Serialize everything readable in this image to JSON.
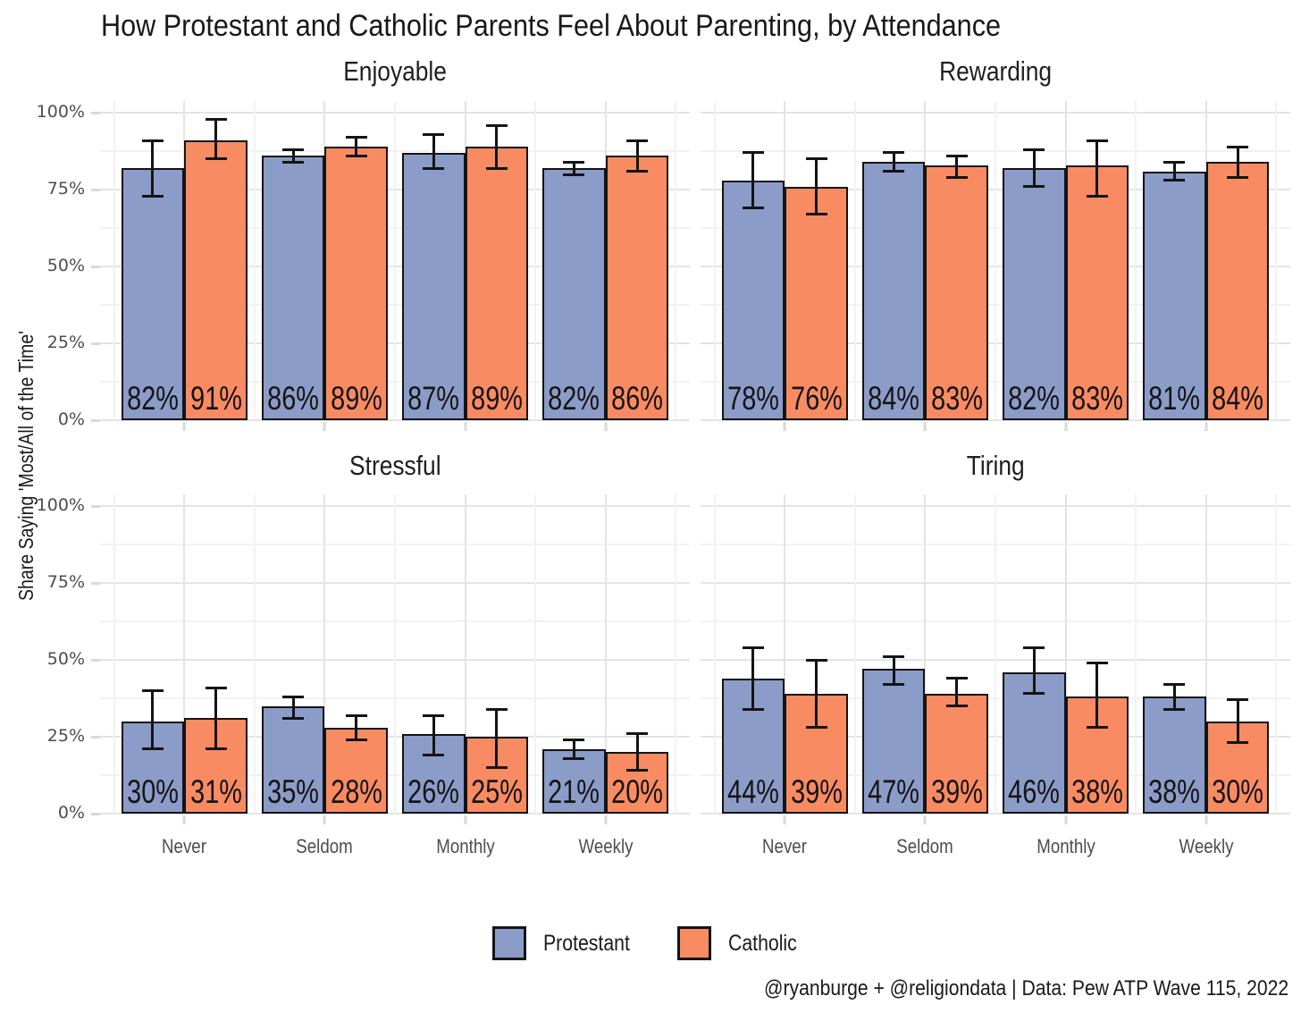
{
  "title": "How Protestant and Catholic Parents Feel About Parenting, by Attendance",
  "y_axis": {
    "label": "Share Saying 'Most/All of the Time'",
    "ticks": [
      "0%",
      "25%",
      "50%",
      "75%",
      "100%"
    ]
  },
  "legend": {
    "items": [
      {
        "label": "Protestant",
        "color": "#8C9CC8"
      },
      {
        "label": "Catholic",
        "color": "#F98B62"
      }
    ]
  },
  "caption": "@ryanburge + @religiondata | Data: Pew ATP Wave 115, 2022",
  "chart_data": {
    "type": "bar",
    "y_unit": "%",
    "ylim": [
      0,
      100
    ],
    "yticks": [
      0,
      25,
      50,
      75,
      100
    ],
    "grid": "on",
    "legend_position": "bottom",
    "error_bars": true,
    "categories": [
      "Never",
      "Seldom",
      "Monthly",
      "Weekly"
    ],
    "facets": [
      {
        "title": "Enjoyable",
        "series": [
          {
            "name": "Protestant",
            "values": [
              82,
              86,
              87,
              82
            ],
            "ci_low": [
              73,
              84,
              82,
              80
            ],
            "ci_high": [
              91,
              88,
              93,
              84
            ]
          },
          {
            "name": "Catholic",
            "values": [
              91,
              89,
              89,
              86
            ],
            "ci_low": [
              85,
              86,
              82,
              81
            ],
            "ci_high": [
              98,
              92,
              96,
              91
            ]
          }
        ]
      },
      {
        "title": "Rewarding",
        "series": [
          {
            "name": "Protestant",
            "values": [
              78,
              84,
              82,
              81
            ],
            "ci_low": [
              69,
              81,
              76,
              78
            ],
            "ci_high": [
              87,
              87,
              88,
              84
            ]
          },
          {
            "name": "Catholic",
            "values": [
              76,
              83,
              83,
              84
            ],
            "ci_low": [
              67,
              79,
              73,
              79
            ],
            "ci_high": [
              85,
              86,
              91,
              89
            ]
          }
        ]
      },
      {
        "title": "Stressful",
        "series": [
          {
            "name": "Protestant",
            "values": [
              30,
              35,
              26,
              21
            ],
            "ci_low": [
              21,
              31,
              19,
              18
            ],
            "ci_high": [
              40,
              38,
              32,
              24
            ]
          },
          {
            "name": "Catholic",
            "values": [
              31,
              28,
              25,
              20
            ],
            "ci_low": [
              21,
              24,
              15,
              14
            ],
            "ci_high": [
              41,
              32,
              34,
              26
            ]
          }
        ]
      },
      {
        "title": "Tiring",
        "series": [
          {
            "name": "Protestant",
            "values": [
              44,
              47,
              46,
              38
            ],
            "ci_low": [
              34,
              42,
              39,
              34
            ],
            "ci_high": [
              54,
              51,
              54,
              42
            ]
          },
          {
            "name": "Catholic",
            "values": [
              39,
              39,
              38,
              30
            ],
            "ci_low": [
              28,
              35,
              28,
              23
            ],
            "ci_high": [
              50,
              44,
              49,
              37
            ]
          }
        ]
      }
    ]
  }
}
